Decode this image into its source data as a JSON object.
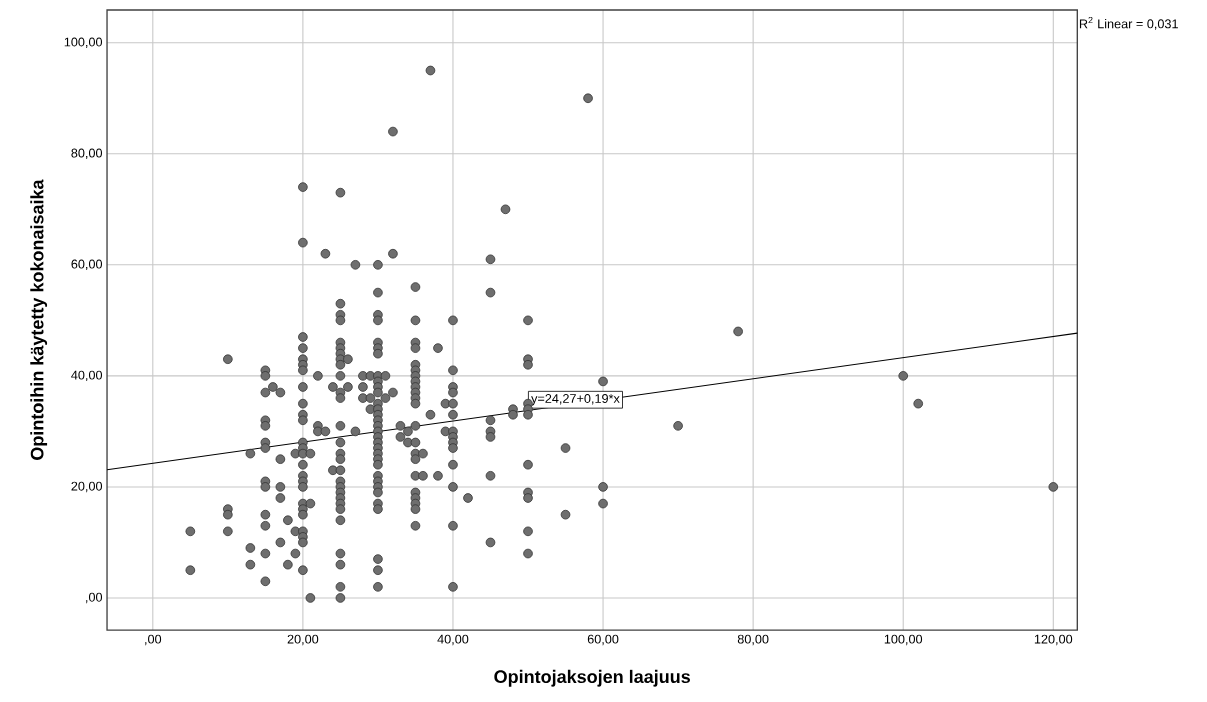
{
  "chart_data": {
    "type": "scatter",
    "xlabel": "Opintojaksojen laajuus",
    "ylabel": "Opintoihin käytetty kokonaisaika",
    "xlim": [
      -6.1,
      123.2
    ],
    "ylim": [
      -5.8,
      105.9
    ],
    "xticks": [
      {
        "value": 0,
        "label": ",00"
      },
      {
        "value": 20,
        "label": "20,00"
      },
      {
        "value": 40,
        "label": "40,00"
      },
      {
        "value": 60,
        "label": "60,00"
      },
      {
        "value": 80,
        "label": "80,00"
      },
      {
        "value": 100,
        "label": "100,00"
      },
      {
        "value": 120,
        "label": "120,00"
      }
    ],
    "yticks": [
      {
        "value": 0,
        "label": ",00"
      },
      {
        "value": 20,
        "label": "20,00"
      },
      {
        "value": 40,
        "label": "40,00"
      },
      {
        "value": 60,
        "label": "60,00"
      },
      {
        "value": 80,
        "label": "80,00"
      },
      {
        "value": 100,
        "label": "100,00"
      }
    ],
    "grid": true,
    "series": [
      {
        "marker": "circle",
        "color": "#6e6e6e",
        "x": [
          5,
          5,
          10,
          10,
          10,
          10,
          13,
          13,
          13,
          15,
          15,
          15,
          15,
          15,
          15,
          15,
          15,
          15,
          15,
          15,
          15,
          15,
          16,
          17,
          17,
          17,
          17,
          17,
          18,
          18,
          19,
          19,
          19,
          20,
          20,
          20,
          20,
          20,
          20,
          20,
          20,
          20,
          20,
          20,
          20,
          20,
          20,
          20,
          20,
          20,
          20,
          20,
          20,
          20,
          20,
          20,
          20,
          20,
          21,
          21,
          21,
          22,
          22,
          22,
          23,
          23,
          24,
          24,
          25,
          25,
          25,
          25,
          25,
          25,
          25,
          25,
          25,
          25,
          25,
          25,
          25,
          25,
          25,
          25,
          25,
          25,
          25,
          25,
          25,
          25,
          25,
          25,
          25,
          25,
          25,
          25,
          26,
          26,
          27,
          27,
          28,
          28,
          28,
          29,
          29,
          29,
          30,
          30,
          30,
          30,
          30,
          30,
          30,
          30,
          30,
          30,
          30,
          30,
          30,
          30,
          30,
          30,
          30,
          30,
          30,
          30,
          30,
          30,
          30,
          30,
          30,
          30,
          30,
          30,
          30,
          30,
          30,
          30,
          31,
          31,
          32,
          32,
          32,
          33,
          33,
          34,
          34,
          35,
          35,
          35,
          35,
          35,
          35,
          35,
          35,
          35,
          35,
          35,
          35,
          35,
          35,
          35,
          35,
          35,
          35,
          35,
          35,
          35,
          35,
          36,
          36,
          37,
          37,
          38,
          38,
          39,
          39,
          40,
          40,
          40,
          40,
          40,
          40,
          40,
          40,
          40,
          40,
          40,
          40,
          40,
          40,
          42,
          45,
          45,
          45,
          45,
          45,
          45,
          45,
          47,
          48,
          48,
          50,
          50,
          50,
          50,
          50,
          50,
          50,
          50,
          50,
          50,
          50,
          55,
          55,
          58,
          60,
          60,
          60,
          70,
          78,
          100,
          102,
          120
        ],
        "values": [
          12,
          5,
          43,
          16,
          15,
          12,
          9,
          6,
          26,
          41,
          40,
          37,
          32,
          31,
          28,
          27,
          21,
          20,
          15,
          13,
          8,
          3,
          38,
          37,
          25,
          20,
          18,
          10,
          14,
          6,
          26,
          12,
          8,
          74,
          64,
          47,
          45,
          43,
          42,
          41,
          38,
          35,
          33,
          32,
          28,
          27,
          26,
          24,
          22,
          21,
          20,
          17,
          16,
          15,
          12,
          11,
          10,
          5,
          0,
          17,
          26,
          40,
          31,
          30,
          62,
          30,
          38,
          23,
          73,
          53,
          51,
          50,
          46,
          45,
          44,
          43,
          42,
          40,
          37,
          36,
          31,
          28,
          26,
          25,
          23,
          21,
          20,
          19,
          18,
          17,
          16,
          14,
          8,
          6,
          2,
          0,
          43,
          38,
          60,
          30,
          40,
          38,
          36,
          40,
          36,
          34,
          60,
          55,
          51,
          50,
          46,
          45,
          44,
          40,
          39,
          38,
          37,
          35,
          34,
          33,
          32,
          31,
          30,
          29,
          28,
          27,
          26,
          25,
          24,
          22,
          21,
          20,
          19,
          17,
          16,
          7,
          5,
          2,
          36,
          40,
          84,
          62,
          37,
          31,
          29,
          30,
          28,
          56,
          50,
          46,
          45,
          42,
          41,
          40,
          39,
          38,
          37,
          36,
          35,
          31,
          28,
          26,
          25,
          22,
          19,
          18,
          17,
          16,
          13,
          26,
          22,
          95,
          33,
          45,
          22,
          35,
          30,
          50,
          41,
          38,
          37,
          35,
          33,
          30,
          29,
          28,
          27,
          24,
          20,
          13,
          2,
          18,
          61,
          55,
          32,
          30,
          29,
          22,
          10,
          70,
          34,
          33,
          50,
          43,
          42,
          35,
          34,
          33,
          24,
          19,
          18,
          12,
          8,
          27,
          15,
          90,
          39,
          20,
          17,
          31,
          48,
          40,
          35,
          20
        ]
      },
      {
        "type": "line",
        "color": "#000000",
        "x": [
          -6.1,
          123.2
        ],
        "values": [
          23.1,
          47.7
        ]
      }
    ],
    "annotations": [
      {
        "text": "y=24,27+0,19*x",
        "x": 50,
        "y": 35.7
      },
      "R$^{2}$ Linear = 0,031"
    ]
  }
}
